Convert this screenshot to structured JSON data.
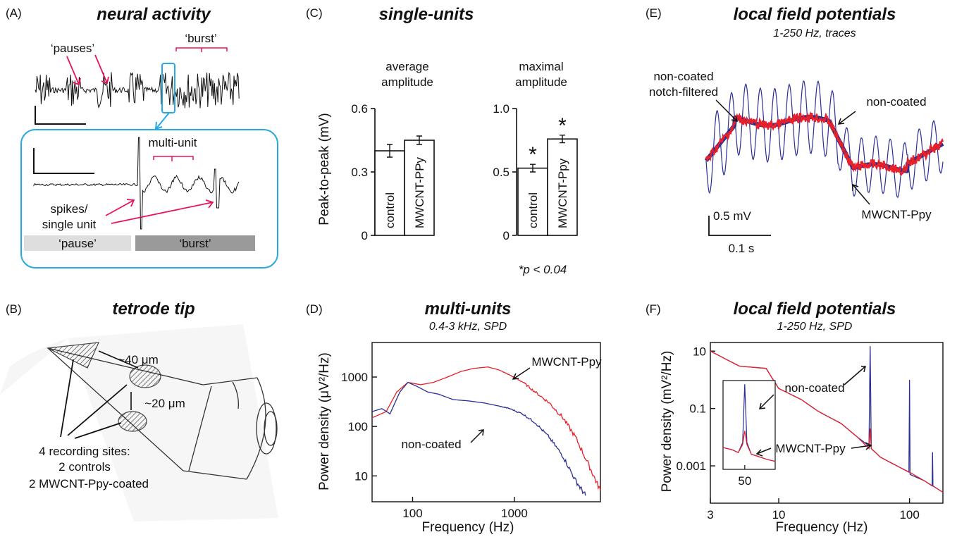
{
  "panels": {
    "A": {
      "letter": "(A)",
      "title": "neural activity",
      "pauses": "‘pauses’",
      "burst_top": "‘burst’",
      "multi_unit": "multi-unit",
      "spikes_line1": "spikes/",
      "spikes_line2": "single unit",
      "pause_box": "‘pause’",
      "burst_box": "‘burst’"
    },
    "B": {
      "letter": "(B)",
      "title": "tetrode tip",
      "dist1": "~40 μm",
      "dist2": "~20 μm",
      "sites_line1": "4 recording sites:",
      "sites_line2": "2 controls",
      "sites_line3": "2 MWCNT-Ppy-coated"
    },
    "C": {
      "letter": "(C)",
      "title": "single-units",
      "ylabel": "Peak-to-peak (mV)",
      "left_title_1": "average",
      "left_title_2": "amplitude",
      "right_title_1": "maximal",
      "right_title_2": "amplitude",
      "left_ticks": [
        "0",
        "0.3",
        "0.6"
      ],
      "right_ticks": [
        "0",
        "0.5",
        "1.0"
      ],
      "star": "*",
      "pnote": "*p < 0.04"
    },
    "D": {
      "letter": "(D)",
      "title": "multi-units",
      "subtitle": "0.4-3 kHz, SPD",
      "xlabel": "Frequency (Hz)",
      "ylabel": "Power density (μV²/Hz)",
      "xticks": [
        "100",
        "1000"
      ],
      "yticks": [
        "10",
        "100",
        "1000"
      ],
      "label_coated": "MWCNT-Ppy",
      "label_noncoated": "non-coated"
    },
    "E": {
      "letter": "(E)",
      "title": "local field potentials",
      "subtitle": "1-250 Hz, traces",
      "label_notch_1": "non-coated",
      "label_notch_2": "notch-filtered",
      "label_noncoated": "non-coated",
      "label_coated": "MWCNT-Ppy",
      "scale_v": "0.5 mV",
      "scale_t": "0.1 s"
    },
    "F": {
      "letter": "(F)",
      "title": "local field potentials",
      "subtitle": "1-250 Hz, SPD",
      "xlabel": "Frequency (Hz)",
      "ylabel": "Power density (mV²/Hz)",
      "xticks": [
        "3",
        "10",
        "100"
      ],
      "yticks": [
        "0.001",
        "0.1",
        "10"
      ],
      "inset_tick": "50",
      "label_noncoated": "non-coated",
      "label_coated": "MWCNT-Ppy"
    }
  },
  "colors": {
    "red": "#e8202a",
    "blue": "#2b2f94",
    "pink": "#e8145a",
    "cyan": "#27a9e1",
    "control_bar": "#ffffff"
  },
  "chart_data": [
    {
      "type": "bar",
      "title": "average amplitude",
      "categories": [
        "control",
        "MWCNT-PPy"
      ],
      "values": [
        0.4,
        0.45
      ],
      "errors": [
        0.03,
        0.02
      ],
      "ylabel": "Peak-to-peak (mV)",
      "ylim": [
        0,
        0.6
      ]
    },
    {
      "type": "bar",
      "title": "maximal amplitude",
      "categories": [
        "control",
        "MWCNT-Ppy"
      ],
      "values": [
        0.53,
        0.76
      ],
      "errors": [
        0.03,
        0.03
      ],
      "significant": [
        true,
        true
      ],
      "note": "*p < 0.04",
      "ylim": [
        0,
        1.0
      ]
    },
    {
      "type": "line",
      "title": "multi-units",
      "subtitle": "0.4-3 kHz, SPD",
      "xscale": "log",
      "yscale": "log",
      "xlabel": "Frequency (Hz)",
      "ylabel": "Power density (μV²/Hz)",
      "xlim": [
        40,
        7000
      ],
      "ylim": [
        3,
        5000
      ],
      "series": [
        {
          "name": "MWCNT-Ppy",
          "x": [
            40,
            55,
            70,
            90,
            120,
            160,
            220,
            300,
            400,
            550,
            700,
            900,
            1200,
            1600,
            2200,
            3000,
            4000,
            5500,
            7000
          ],
          "y": [
            150,
            200,
            500,
            780,
            700,
            780,
            1000,
            1300,
            1500,
            1600,
            1400,
            1100,
            800,
            500,
            300,
            150,
            60,
            15,
            5
          ]
        },
        {
          "name": "non-coated",
          "x": [
            40,
            50,
            60,
            75,
            90,
            110,
            140,
            180,
            250,
            350,
            500,
            700,
            900,
            1200,
            1600,
            2200,
            3000,
            4000,
            5000
          ],
          "y": [
            200,
            230,
            180,
            500,
            780,
            650,
            500,
            450,
            350,
            330,
            300,
            260,
            230,
            180,
            120,
            60,
            25,
            8,
            4
          ]
        }
      ]
    },
    {
      "type": "line",
      "title": "local field potentials",
      "subtitle": "1-250 Hz, SPD",
      "xscale": "log",
      "yscale": "log",
      "xlabel": "Frequency (Hz)",
      "ylabel": "Power density (mV²/Hz)",
      "xlim": [
        3,
        180
      ],
      "ylim": [
        5e-05,
        20
      ],
      "series": [
        {
          "name": "non-coated",
          "x": [
            3,
            5,
            8,
            10,
            15,
            20,
            30,
            40,
            49,
            50,
            51,
            60,
            80,
            99,
            100,
            101,
            130,
            149,
            150,
            151,
            180
          ],
          "y": [
            10,
            3,
            2.5,
            0.5,
            0.2,
            0.08,
            0.03,
            0.01,
            0.005,
            15,
            0.004,
            0.002,
            0.001,
            0.0006,
            1,
            0.0005,
            0.0003,
            0.0002,
            0.003,
            0.0002,
            0.00012
          ]
        },
        {
          "name": "MWCNT-Ppy",
          "x": [
            3,
            5,
            8,
            10,
            15,
            20,
            30,
            40,
            49,
            50,
            51,
            60,
            80,
            100,
            130,
            150,
            180
          ],
          "y": [
            10,
            3,
            2.5,
            0.5,
            0.2,
            0.08,
            0.03,
            0.01,
            0.004,
            0.02,
            0.004,
            0.002,
            0.001,
            0.0006,
            0.0003,
            0.0002,
            0.00012
          ]
        }
      ]
    }
  ]
}
